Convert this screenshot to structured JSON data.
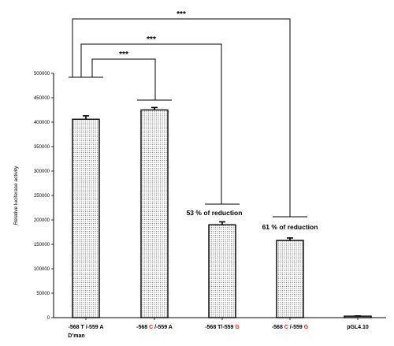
{
  "chart_data": {
    "type": "bar",
    "ylabel": "Relative luciferase activity",
    "ylim": [
      0,
      500000
    ],
    "ytick_step": 50000,
    "categories": [
      {
        "line1": [
          {
            "t": "-568 T /-559 A",
            "c": "#000000"
          }
        ],
        "line2": "D’man"
      },
      {
        "line1": [
          {
            "t": "-568 ",
            "c": "#000000"
          },
          {
            "t": "C",
            "c": "#e0201b"
          },
          {
            "t": " /-559 A",
            "c": "#000000"
          }
        ],
        "line2": ""
      },
      {
        "line1": [
          {
            "t": "-568 T/-559 ",
            "c": "#000000"
          },
          {
            "t": "G",
            "c": "#e0201b"
          }
        ],
        "line2": ""
      },
      {
        "line1": [
          {
            "t": "-568 ",
            "c": "#000000"
          },
          {
            "t": "C",
            "c": "#e0201b"
          },
          {
            "t": " /-559 ",
            "c": "#000000"
          },
          {
            "t": "G",
            "c": "#e0201b"
          }
        ],
        "line2": ""
      },
      {
        "line1": [
          {
            "t": "pGL4.10",
            "c": "#000000"
          }
        ],
        "line2": ""
      }
    ],
    "values": [
      406000,
      425000,
      190000,
      158000,
      3000
    ],
    "errors": [
      7000,
      5000,
      6000,
      5000,
      500
    ],
    "annotations": [
      {
        "bar": 2,
        "text": "53 % of reduction"
      },
      {
        "bar": 3,
        "text": "61 % of reduction"
      }
    ],
    "significance": [
      {
        "from": 0,
        "to": 1,
        "label": "***"
      },
      {
        "from": 0,
        "to": 2,
        "label": "***"
      },
      {
        "from": 0,
        "to": 3,
        "label": "***"
      }
    ],
    "grid": false,
    "bar_fill": "dotted",
    "accent_color": "#e0201b"
  }
}
